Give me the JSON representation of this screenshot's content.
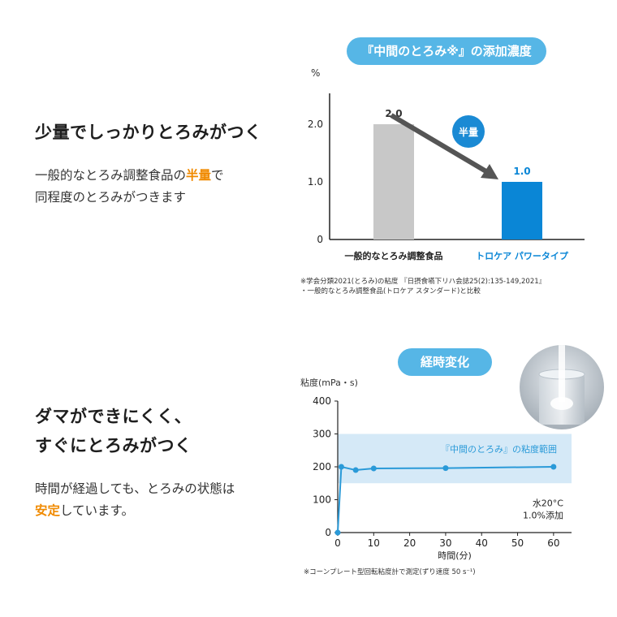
{
  "section1": {
    "heading": "少量でしっかりとろみがつく",
    "body_line1_pre": "一般的なとろみ調整食品の",
    "body_line1_hl": "半量",
    "body_line1_post": "で",
    "body_line2": "同程度のとろみがつきます"
  },
  "chart1": {
    "pill": "『中間のとろみ※』の添加濃度",
    "arrow_badge": "半量",
    "notes": [
      "※学会分類2021(とろみ)の粘度 『日摂食嚥下リハ会誌25(2):135-149,2021』",
      "・一般的なとろみ調整食品(トロケア スタンダード)と比較"
    ]
  },
  "section2": {
    "heading_line1": "ダマができにくく、",
    "heading_line2": "すぐにとろみがつく",
    "body_line1": "時間が経過しても、とろみの状態は",
    "body_line2_hl": "安定",
    "body_line2_post": "しています。"
  },
  "chart2": {
    "pill": "経時変化",
    "range_label": "『中間のとろみ』の粘度範囲",
    "condition_line1": "水20°C",
    "condition_line2": "1.0%添加",
    "note": "※コーンプレート型回転粘度計で測定(ずり速度 50 s⁻¹)"
  },
  "chart_data": [
    {
      "type": "bar",
      "title": "『中間のとろみ※』の添加濃度",
      "ylabel": "%",
      "categories": [
        "一般的なとろみ調整食品",
        "トロケア パワータイプ"
      ],
      "values": [
        2.0,
        1.0
      ],
      "value_labels": [
        "2.0",
        "1.0"
      ],
      "colors": [
        "#c8c8c8",
        "#0a86d6"
      ],
      "yticks": [
        "0",
        "1.0",
        "2.0"
      ],
      "ylim": [
        0,
        2.4
      ],
      "annotation": "半量"
    },
    {
      "type": "line",
      "title": "経時変化",
      "ylabel": "粘度(mPa・s)",
      "xlabel": "時間(分)",
      "x": [
        0,
        1,
        5,
        10,
        30,
        60
      ],
      "y": [
        0,
        200,
        190,
        195,
        196,
        200
      ],
      "xticks": [
        0,
        10,
        20,
        30,
        40,
        50,
        60
      ],
      "yticks": [
        0,
        100,
        200,
        300,
        400
      ],
      "xlim": [
        0,
        65
      ],
      "ylim": [
        0,
        400
      ],
      "band": [
        150,
        300
      ],
      "color": "#2a9ad8",
      "grid": false
    }
  ]
}
